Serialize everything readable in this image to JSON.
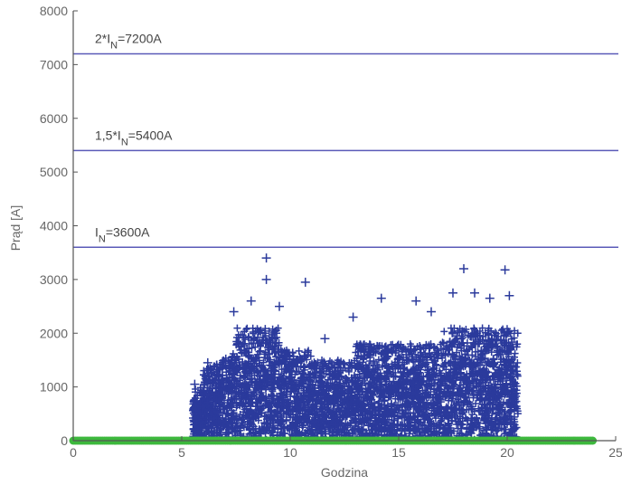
{
  "chart_data": {
    "type": "scatter",
    "xlabel": "Godzina",
    "ylabel": "Prąd [A]",
    "xlim": [
      0,
      25
    ],
    "ylim": [
      0,
      8000
    ],
    "x_ticks": [
      "0",
      "5",
      "10",
      "15",
      "20",
      "25"
    ],
    "y_ticks": [
      "0",
      "1000",
      "2000",
      "3000",
      "4000",
      "5000",
      "6000",
      "7000",
      "8000"
    ],
    "grid": false,
    "colors": {
      "current": "#2b3a9c",
      "zero": "#3db83d",
      "reference": "#5a5ab8",
      "axis": "#555555"
    },
    "reference_lines": [
      {
        "y": 7200,
        "label_main": "2*I",
        "label_sub": "N",
        "label_tail": "=7200A"
      },
      {
        "y": 5400,
        "label_main": "1,5*I",
        "label_sub": "N",
        "label_tail": "=5400A"
      },
      {
        "y": 3600,
        "label_main": "I",
        "label_sub": "N",
        "label_tail": "=3600A"
      }
    ],
    "series": [
      {
        "marker": "plus",
        "x_range": [
          5.5,
          20.5
        ],
        "peaks": [
          {
            "x": 8.9,
            "y": 3400
          },
          {
            "x": 8.9,
            "y": 3000
          },
          {
            "x": 10.7,
            "y": 2950
          },
          {
            "x": 18.0,
            "y": 3200
          },
          {
            "x": 19.9,
            "y": 3180
          },
          {
            "x": 17.5,
            "y": 2750
          },
          {
            "x": 14.2,
            "y": 2650
          },
          {
            "x": 15.8,
            "y": 2600
          },
          {
            "x": 18.5,
            "y": 2750
          },
          {
            "x": 19.2,
            "y": 2650
          },
          {
            "x": 20.1,
            "y": 2700
          },
          {
            "x": 8.2,
            "y": 2600
          },
          {
            "x": 9.5,
            "y": 2500
          },
          {
            "x": 7.4,
            "y": 2400
          },
          {
            "x": 12.9,
            "y": 2300
          },
          {
            "x": 16.5,
            "y": 2400
          },
          {
            "x": 6.2,
            "y": 1450
          },
          {
            "x": 5.6,
            "y": 1050
          },
          {
            "x": 11.6,
            "y": 1900
          },
          {
            "x": 13.5,
            "y": 1750
          }
        ]
      },
      {
        "marker": "circle",
        "x_range": [
          0,
          24
        ],
        "y": 0
      }
    ]
  }
}
